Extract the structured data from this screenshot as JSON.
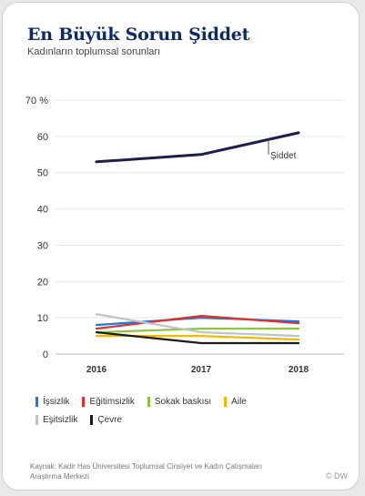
{
  "chart_data": {
    "type": "line",
    "title": "En Büyük Sorun Şiddet",
    "subtitle": "Kadınların toplumsal sorunları",
    "x": [
      "2016",
      "2017",
      "2018"
    ],
    "y_ticks": [
      "70 %",
      "60",
      "50",
      "40",
      "30",
      "20",
      "10",
      "0"
    ],
    "ylim": [
      0,
      70
    ],
    "grid": true,
    "legend_position": "bottom",
    "series": [
      {
        "name": "İşsizlik",
        "values": [
          8,
          10,
          9
        ],
        "color": "#1f77e0"
      },
      {
        "name": "Eğitimsizlik",
        "values": [
          7,
          10.5,
          8.5
        ],
        "color": "#e0312a"
      },
      {
        "name": "Sokak baskısı",
        "values": [
          6,
          7,
          7
        ],
        "color": "#8cc63e"
      },
      {
        "name": "Aile",
        "values": [
          5,
          5,
          4
        ],
        "color": "#f2b705"
      },
      {
        "name": "Eşitsizlik",
        "values": [
          11,
          6,
          5
        ],
        "color": "#bfc3c7"
      },
      {
        "name": "Çevre",
        "values": [
          6,
          3,
          3
        ],
        "color": "#1b1b1b"
      },
      {
        "name": "Şiddet",
        "values": [
          53,
          55,
          61
        ],
        "color": "#1c1f4a"
      }
    ],
    "annotation": "Şiddet"
  },
  "source": "Kaynak: Kadir Has Üniversitesi Toplumsal Cinsiyet ve Kadın Çalışmaları Araştırma Merkezi",
  "credit": "© DW"
}
